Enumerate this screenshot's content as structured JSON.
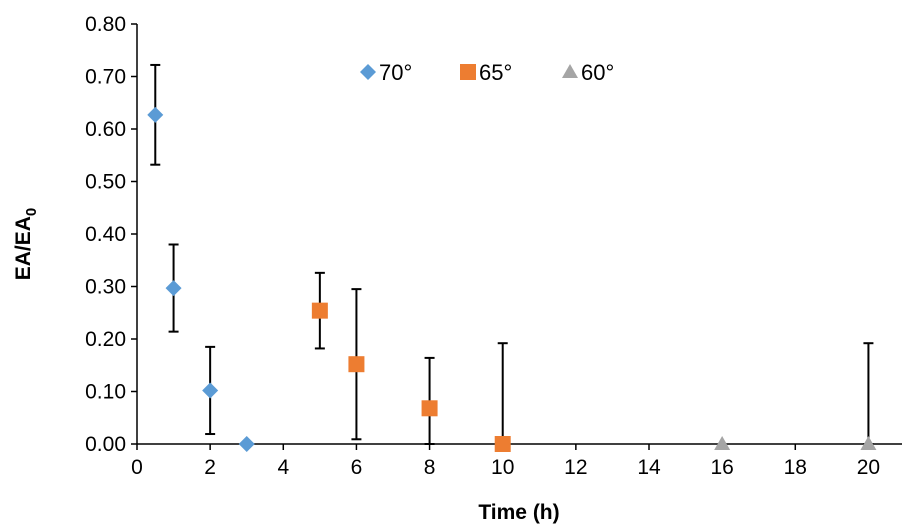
{
  "chart_data": {
    "type": "scatter",
    "xlabel": "Time (h)",
    "ylabel": {
      "main": "EA/EA",
      "subscript": "0"
    },
    "xlim": [
      0,
      21
    ],
    "ylim": [
      0,
      0.8
    ],
    "x_ticks": [
      "0",
      "2",
      "4",
      "6",
      "8",
      "10",
      "12",
      "14",
      "16",
      "18",
      "20"
    ],
    "y_ticks": [
      "0.00",
      "0.10",
      "0.20",
      "0.30",
      "0.40",
      "0.50",
      "0.60",
      "0.70",
      "0.80"
    ],
    "grid": false,
    "legend_position": "top-center",
    "error_bar_color": "#000000",
    "series": [
      {
        "name": "70°",
        "marker": "diamond",
        "color": "#5B9BD5",
        "points": [
          {
            "x": 0.5,
            "y": 0.627,
            "err": 0.095
          },
          {
            "x": 1,
            "y": 0.297,
            "err": 0.083
          },
          {
            "x": 2,
            "y": 0.102,
            "err": 0.083
          },
          {
            "x": 3,
            "y": 0.0,
            "err": 0
          }
        ]
      },
      {
        "name": "65°",
        "marker": "square",
        "color": "#ED7D31",
        "points": [
          {
            "x": 5,
            "y": 0.254,
            "err": 0.072
          },
          {
            "x": 6,
            "y": 0.152,
            "err": 0.143
          },
          {
            "x": 8,
            "y": 0.068,
            "err": 0.096
          },
          {
            "x": 10,
            "y": 0.0,
            "err": 0.192
          }
        ]
      },
      {
        "name": "60°",
        "marker": "triangle",
        "color": "#A5A5A5",
        "points": [
          {
            "x": 16,
            "y": 0.0,
            "err": 0
          },
          {
            "x": 20,
            "y": 0.0,
            "err": 0.192
          }
        ]
      }
    ]
  }
}
